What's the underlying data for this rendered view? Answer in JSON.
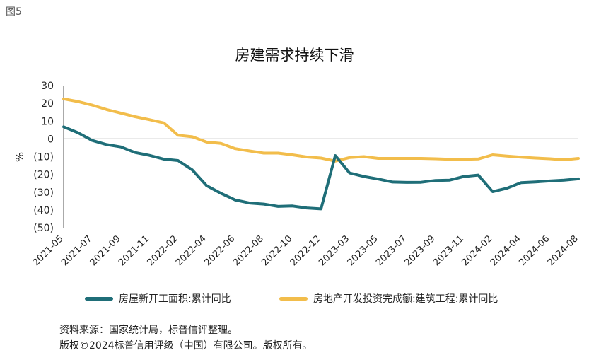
{
  "figure_label": "图5",
  "colors": {
    "series1": "#1f6e78",
    "series2": "#f2bd4b",
    "axis": "#555555"
  },
  "chart_data": {
    "type": "line",
    "title": "房建需求持续下滑",
    "ylabel": "%",
    "ylim": [
      -50,
      30
    ],
    "yticks": [
      30,
      20,
      10,
      0,
      -10,
      -20,
      -30,
      -40,
      -50
    ],
    "ytick_labels": [
      "30",
      "20",
      "10",
      "0",
      "(10)",
      "(20)",
      "(30)",
      "(40)",
      "(50)"
    ],
    "x": [
      "2021-05",
      "2021-06",
      "2021-07",
      "2021-08",
      "2021-09",
      "2021-10",
      "2021-11",
      "2021-12",
      "2022-02",
      "2022-03",
      "2022-04",
      "2022-05",
      "2022-06",
      "2022-07",
      "2022-08",
      "2022-09",
      "2022-10",
      "2022-11",
      "2022-12",
      "2023-02",
      "2023-03",
      "2023-04",
      "2023-05",
      "2023-06",
      "2023-07",
      "2023-08",
      "2023-09",
      "2023-10",
      "2023-11",
      "2023-12",
      "2024-02",
      "2024-03",
      "2024-04",
      "2024-05",
      "2024-06",
      "2024-07",
      "2024-08"
    ],
    "xtick_labels": [
      "2021-05",
      "2021-07",
      "2021-09",
      "2021-11",
      "2022-02",
      "2022-04",
      "2022-06",
      "2022-08",
      "2022-10",
      "2022-12",
      "2023-03",
      "2023-05",
      "2023-07",
      "2023-09",
      "2023-11",
      "2024-02",
      "2024-04",
      "2024-06",
      "2024-08"
    ],
    "series": [
      {
        "name": "房屋新开工面积:累计同比",
        "values": [
          6.8,
          3.5,
          -0.9,
          -3.2,
          -4.5,
          -7.7,
          -9.3,
          -11.4,
          -12.2,
          -17.5,
          -26.3,
          -30.6,
          -34.4,
          -36.1,
          -36.7,
          -38.0,
          -37.8,
          -38.9,
          -39.4,
          -9.4,
          -19.2,
          -21.2,
          -22.6,
          -24.3,
          -24.5,
          -24.4,
          -23.4,
          -23.2,
          -21.2,
          -20.4,
          -29.7,
          -27.8,
          -24.6,
          -24.2,
          -23.7,
          -23.2,
          -22.5
        ]
      },
      {
        "name": "房地产开发投资完成额:建筑工程:累计同比",
        "values": [
          22.5,
          21.0,
          19.0,
          16.5,
          14.5,
          12.5,
          10.8,
          9.0,
          2.0,
          1.2,
          -1.8,
          -2.5,
          -5.5,
          -6.8,
          -8.0,
          -8.0,
          -9.0,
          -10.2,
          -10.8,
          -12.5,
          -10.5,
          -10.0,
          -11.0,
          -11.0,
          -11.0,
          -11.0,
          -11.2,
          -11.5,
          -11.5,
          -11.3,
          -9.0,
          -9.7,
          -10.3,
          -10.8,
          -11.2,
          -11.8,
          -11.0
        ]
      }
    ],
    "legend": "bottom"
  },
  "source_lines": [
    "资料来源：国家统计局，标普信评整理。",
    "版权©2024标普信用评级（中国）有限公司。版权所有。"
  ]
}
